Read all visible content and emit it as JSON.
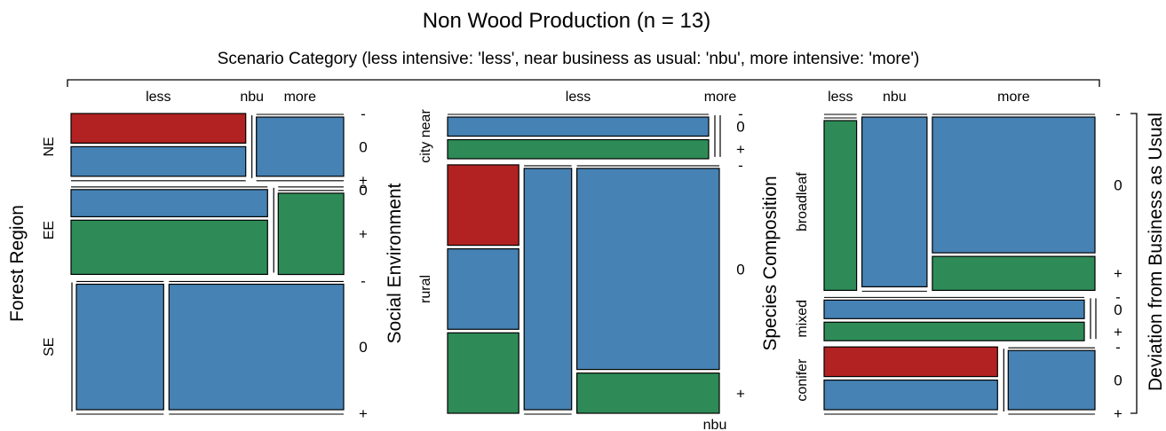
{
  "title": "Non Wood Production (n = 13)",
  "subtitle": "Scenario Category (less intensive: 'less', near business as usual: 'nbu', more intensive: 'more')",
  "right_axis_label": "Deviation from Business as Usual",
  "colors": {
    "-": "#b22222",
    "0": "#4682b4",
    "+": "#2e8b57"
  },
  "chart_data": [
    {
      "type": "mosaic",
      "y_axis_label": "Forest Region",
      "x_categories": [
        "less",
        "nbu",
        "more"
      ],
      "y_categories": [
        "NE",
        "EE",
        "SE"
      ],
      "deviation_levels": [
        "-",
        "0",
        "+"
      ],
      "cells": [
        {
          "row": "NE",
          "col": "less",
          "minus": 1,
          "zero": 1,
          "plus": 0
        },
        {
          "row": "NE",
          "col": "nbu",
          "minus": 0,
          "zero": 0,
          "plus": 0
        },
        {
          "row": "NE",
          "col": "more",
          "minus": 0,
          "zero": 1,
          "plus": 0
        },
        {
          "row": "EE",
          "col": "less",
          "minus": 0,
          "zero": 1,
          "plus": 2
        },
        {
          "row": "EE",
          "col": "nbu",
          "minus": 0,
          "zero": 0,
          "plus": 0
        },
        {
          "row": "EE",
          "col": "more",
          "minus": 0,
          "zero": 0,
          "plus": 1
        },
        {
          "row": "SE",
          "col": "less",
          "minus": 0,
          "zero": 0,
          "plus": 0
        },
        {
          "row": "SE",
          "col": "nbu",
          "minus": 0,
          "zero": 2,
          "plus": 0
        },
        {
          "row": "SE",
          "col": "more",
          "minus": 0,
          "zero": 4,
          "plus": 0
        }
      ]
    },
    {
      "type": "mosaic",
      "y_axis_label": "Social Environment",
      "x_categories": [
        "less",
        "nbu",
        "more"
      ],
      "y_categories": [
        "city near",
        "rural"
      ],
      "deviation_levels": [
        "-",
        "0",
        "+"
      ],
      "cells": [
        {
          "row": "city near",
          "col": "less",
          "minus": 0,
          "zero": 1,
          "plus": 1
        },
        {
          "row": "city near",
          "col": "nbu",
          "minus": 0,
          "zero": 0,
          "plus": 0
        },
        {
          "row": "city near",
          "col": "more",
          "minus": 0,
          "zero": 0,
          "plus": 0
        },
        {
          "row": "rural",
          "col": "less",
          "minus": 1,
          "zero": 1,
          "plus": 1
        },
        {
          "row": "rural",
          "col": "nbu",
          "minus": 0,
          "zero": 2,
          "plus": 0
        },
        {
          "row": "rural",
          "col": "more",
          "minus": 0,
          "zero": 5,
          "plus": 1
        }
      ]
    },
    {
      "type": "mosaic",
      "y_axis_label": "Species Composition",
      "x_categories": [
        "less",
        "nbu",
        "more"
      ],
      "y_categories": [
        "broadleaf",
        "mixed",
        "conifer"
      ],
      "deviation_levels": [
        "-",
        "0",
        "+"
      ],
      "cells": [
        {
          "row": "broadleaf",
          "col": "less",
          "minus": 0,
          "zero": 0,
          "plus": 1
        },
        {
          "row": "broadleaf",
          "col": "nbu",
          "minus": 0,
          "zero": 2,
          "plus": 0
        },
        {
          "row": "broadleaf",
          "col": "more",
          "minus": 0,
          "zero": 4,
          "plus": 1
        },
        {
          "row": "mixed",
          "col": "less",
          "minus": 0,
          "zero": 1,
          "plus": 1
        },
        {
          "row": "mixed",
          "col": "nbu",
          "minus": 0,
          "zero": 0,
          "plus": 0
        },
        {
          "row": "mixed",
          "col": "more",
          "minus": 0,
          "zero": 0,
          "plus": 0
        },
        {
          "row": "conifer",
          "col": "less",
          "minus": 1,
          "zero": 1,
          "plus": 0
        },
        {
          "row": "conifer",
          "col": "nbu",
          "minus": 0,
          "zero": 0,
          "plus": 0
        },
        {
          "row": "conifer",
          "col": "more",
          "minus": 0,
          "zero": 1,
          "plus": 0
        }
      ]
    }
  ]
}
